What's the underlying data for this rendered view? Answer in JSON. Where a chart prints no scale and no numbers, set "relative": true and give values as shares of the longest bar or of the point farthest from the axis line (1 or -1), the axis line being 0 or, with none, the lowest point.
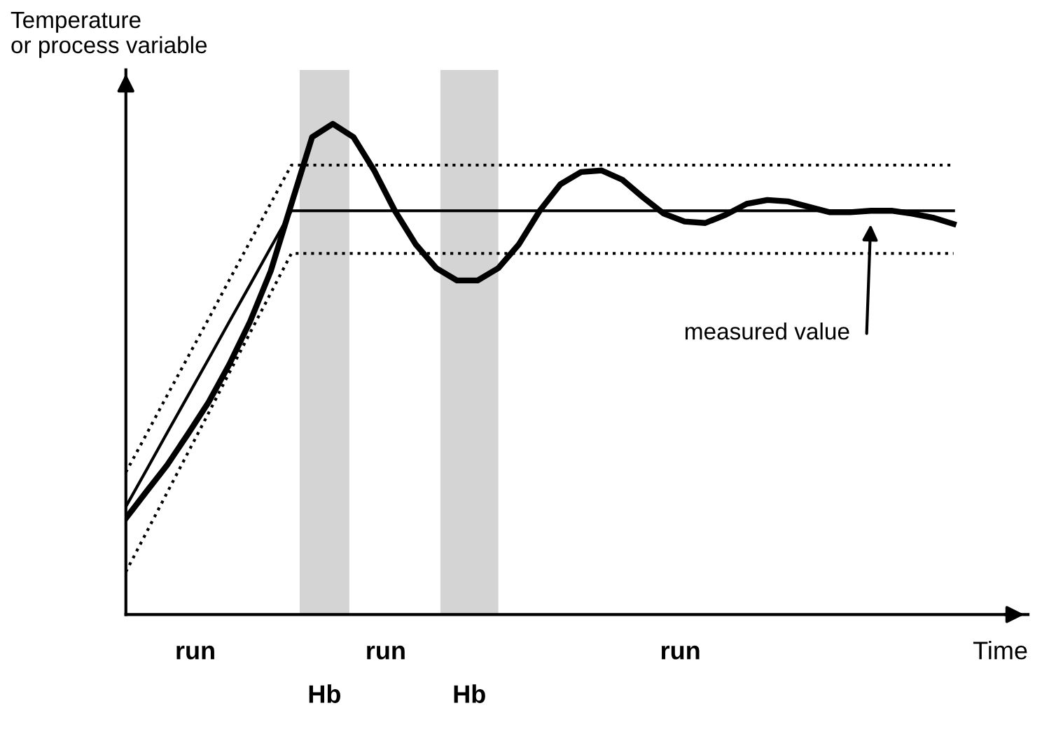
{
  "chart_data": {
    "type": "line",
    "relative": true,
    "xlabel": "Time",
    "ylabel": "Temperature\nor process variable",
    "categories": [
      null,
      null,
      null,
      null,
      null,
      null,
      null,
      null,
      null,
      null,
      null,
      null,
      null,
      null,
      null,
      null,
      null,
      null,
      null,
      null,
      null,
      null,
      null,
      null,
      null,
      null,
      null,
      null,
      null,
      null,
      null,
      null,
      null,
      null,
      null,
      null,
      null,
      null,
      null,
      null,
      null
    ],
    "series": [
      {
        "color": "#000000",
        "line_style": "dotted",
        "values": [
          0.29,
          0.368,
          0.447,
          0.525,
          0.603,
          0.682,
          0.76,
          0.838,
          0.916,
          0.916,
          0.916,
          0.916,
          0.916,
          0.916,
          0.916,
          0.916,
          0.916,
          0.916,
          0.916,
          0.916,
          0.916,
          0.916,
          0.916,
          0.916,
          0.916,
          0.916,
          0.916,
          0.916,
          0.916,
          0.916,
          0.916,
          0.916,
          0.916,
          0.916,
          0.916,
          0.916,
          0.916,
          0.916,
          0.916,
          0.916,
          0.916
        ]
      },
      {
        "color": "#000000",
        "line_style": "dotted",
        "values": [
          0.087,
          0.168,
          0.249,
          0.33,
          0.411,
          0.493,
          0.574,
          0.655,
          0.736,
          0.736,
          0.736,
          0.736,
          0.736,
          0.736,
          0.736,
          0.736,
          0.736,
          0.736,
          0.736,
          0.736,
          0.736,
          0.736,
          0.736,
          0.736,
          0.736,
          0.736,
          0.736,
          0.736,
          0.736,
          0.736,
          0.736,
          0.736,
          0.736,
          0.736,
          0.736,
          0.736,
          0.736,
          0.736,
          0.736,
          0.736,
          0.736
        ]
      },
      {
        "color": "#000000",
        "line_style": "solid",
        "values": [
          0.22,
          0.295,
          0.371,
          0.446,
          0.521,
          0.597,
          0.672,
          0.748,
          0.823,
          0.823,
          0.823,
          0.823,
          0.823,
          0.823,
          0.823,
          0.823,
          0.823,
          0.823,
          0.823,
          0.823,
          0.823,
          0.823,
          0.823,
          0.823,
          0.823,
          0.823,
          0.823,
          0.823,
          0.823,
          0.823,
          0.823,
          0.823,
          0.823,
          0.823,
          0.823,
          0.823,
          0.823,
          0.823,
          0.823,
          0.823,
          0.823
        ]
      },
      {
        "color": "#000000",
        "line_style": "solid",
        "values": [
          0.196,
          0.251,
          0.305,
          0.368,
          0.433,
          0.51,
          0.597,
          0.7,
          0.837,
          0.973,
          1.0,
          0.973,
          0.905,
          0.823,
          0.755,
          0.706,
          0.681,
          0.681,
          0.706,
          0.755,
          0.823,
          0.877,
          0.902,
          0.905,
          0.886,
          0.85,
          0.817,
          0.801,
          0.798,
          0.815,
          0.837,
          0.845,
          0.842,
          0.831,
          0.82,
          0.82,
          0.823,
          0.823,
          0.817,
          0.809,
          0.796
        ]
      }
    ],
    "annotations": [
      "run",
      "run",
      "run",
      "Hb",
      "Hb",
      "measured value"
    ],
    "grid": false,
    "legend": false
  }
}
